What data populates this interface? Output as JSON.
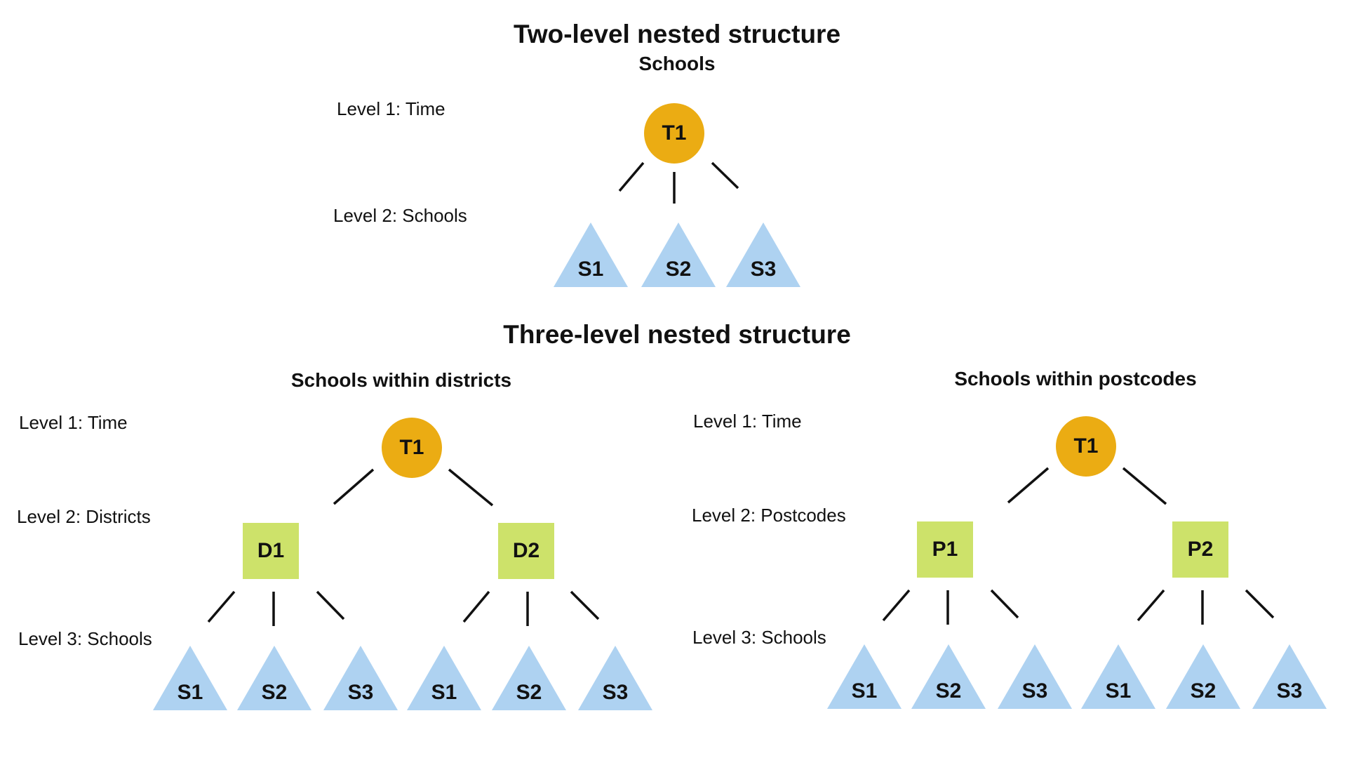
{
  "diagram": {
    "two_level": {
      "title": "Two-level nested structure",
      "subtitle": "Schools",
      "levels": [
        "Level 1: Time",
        "Level 2: Schools"
      ],
      "root": "T1",
      "leaves": [
        "S1",
        "S2",
        "S3"
      ]
    },
    "three_level": {
      "title": "Three-level nested structure",
      "districts": {
        "subtitle": "Schools within districts",
        "levels": [
          "Level 1: Time",
          "Level 2: Districts",
          "Level 3: Schools"
        ],
        "root": "T1",
        "groups": [
          {
            "label": "D1",
            "leaves": [
              "S1",
              "S2",
              "S3"
            ]
          },
          {
            "label": "D2",
            "leaves": [
              "S1",
              "S2",
              "S3"
            ]
          }
        ]
      },
      "postcodes": {
        "subtitle": "Schools within postcodes",
        "levels": [
          "Level 1: Time",
          "Level 2: Postcodes",
          "Level 3: Schools"
        ],
        "root": "T1",
        "groups": [
          {
            "label": "P1",
            "leaves": [
              "S1",
              "S2",
              "S3"
            ]
          },
          {
            "label": "P2",
            "leaves": [
              "S1",
              "S2",
              "S3"
            ]
          }
        ]
      }
    },
    "colors": {
      "time_node": "#EBAC13",
      "group_node": "#CDE26A",
      "school_node": "#AED2F1"
    }
  }
}
